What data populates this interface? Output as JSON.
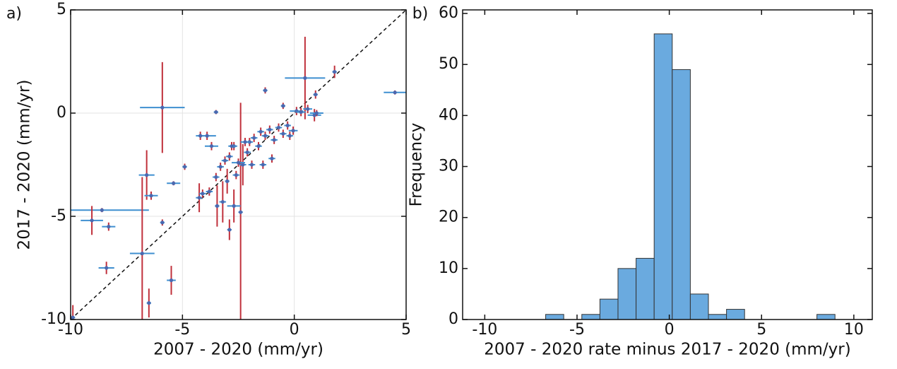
{
  "chart_data": [
    {
      "type": "scatter",
      "panel_label": "a)",
      "xlabel": "2007 - 2020 (mm/yr)",
      "ylabel": "2017 - 2020 (mm/yr)",
      "xlim": [
        -10,
        5
      ],
      "ylim": [
        -10,
        5
      ],
      "xticks": [
        -10,
        -5,
        0,
        5
      ],
      "yticks": [
        -10,
        -5,
        0,
        5
      ],
      "grid": true,
      "identity_line": true,
      "series": [
        {
          "color": "#4a69b0",
          "xerr_color": "#3f8fd0",
          "yerr_color": "#c0303b",
          "x": [
            -5.9,
            0.48,
            -8.6,
            4.5,
            -2.4,
            -6.8,
            -6.5,
            -6.6,
            -9.05,
            -8.3,
            -8.4,
            -9.9,
            -5.5,
            -5.4,
            -4.9,
            -6.4,
            -2.3,
            -0.05,
            0.9,
            1.8,
            -0.5,
            -1.3,
            -3.5,
            -3.9,
            -4.25,
            -3.0,
            -3.2,
            -2.7,
            -3.45,
            -2.9,
            -5.9,
            -4.1,
            -3.8,
            -3.5,
            -3.3,
            -3.1,
            -2.9,
            -2.7,
            -2.5,
            -2.1,
            -2.0,
            -1.8,
            -1.6,
            -1.5,
            -1.3,
            -1.1,
            -0.9,
            -0.7,
            -0.5,
            -0.3,
            -0.2,
            -1.9,
            -2.6,
            -1.0,
            -1.4,
            -2.8,
            0.1,
            0.3,
            0.6,
            1.0,
            0.95,
            -4.2,
            -3.7,
            -2.2
          ],
          "values": [
            0.27,
            1.7,
            -4.7,
            1.0,
            -4.8,
            -6.8,
            -9.2,
            -3.0,
            -5.2,
            -5.5,
            -7.5,
            -9.9,
            -8.1,
            -3.4,
            -2.6,
            -4.0,
            -2.5,
            -0.85,
            -0.1,
            2.0,
            0.35,
            1.1,
            0.05,
            -1.1,
            -4.1,
            -3.3,
            -4.3,
            -4.5,
            -4.5,
            -5.65,
            -5.3,
            -3.9,
            -3.8,
            -3.1,
            -2.6,
            -2.3,
            -2.1,
            -1.6,
            -2.4,
            -1.9,
            -1.4,
            -1.2,
            -1.6,
            -0.9,
            -1.1,
            -0.8,
            -1.3,
            -0.7,
            -1.0,
            -0.6,
            -1.1,
            -2.5,
            -3.0,
            -2.2,
            -2.5,
            -1.6,
            0.1,
            0.05,
            0.2,
            0.0,
            0.9,
            -1.1,
            -1.6,
            -1.4
          ],
          "xerr": [
            1.0,
            0.9,
            2.1,
            0.5,
            0.1,
            0.55,
            0.1,
            0.35,
            0.5,
            0.3,
            0.35,
            0.1,
            0.2,
            0.3,
            0.1,
            0.3,
            0.15,
            0.2,
            0.3,
            0.1,
            0.1,
            0.1,
            0.1,
            0.4,
            0.15,
            0.1,
            0.15,
            0.3,
            0.1,
            0.1,
            0.1,
            0.15,
            0.15,
            0.15,
            0.15,
            0.15,
            0.15,
            0.15,
            0.3,
            0.15,
            0.15,
            0.15,
            0.15,
            0.15,
            0.15,
            0.15,
            0.15,
            0.15,
            0.15,
            0.15,
            0.15,
            0.15,
            0.15,
            0.15,
            0.15,
            0.15,
            0.3,
            0.2,
            0.2,
            0.3,
            0.1,
            0.2,
            0.3,
            0.2
          ],
          "yerr": [
            2.2,
            2.0,
            0.1,
            0.1,
            5.3,
            3.7,
            0.7,
            1.2,
            0.7,
            0.2,
            0.3,
            0.6,
            0.7,
            0.1,
            0.15,
            0.2,
            1.0,
            0.2,
            0.3,
            0.3,
            0.15,
            0.15,
            0.1,
            0.2,
            0.7,
            0.6,
            1.0,
            0.8,
            1.0,
            0.5,
            0.15,
            0.2,
            0.2,
            0.2,
            0.2,
            0.2,
            0.2,
            0.2,
            0.2,
            0.2,
            0.2,
            0.2,
            0.2,
            0.2,
            0.2,
            0.2,
            0.2,
            0.2,
            0.2,
            0.2,
            0.2,
            0.2,
            0.2,
            0.2,
            0.2,
            0.2,
            0.2,
            0.2,
            0.2,
            0.15,
            0.2,
            0.2,
            0.2,
            0.2
          ]
        }
      ]
    },
    {
      "type": "histogram",
      "panel_label": "b)",
      "xlabel": "2007 - 2020 rate minus 2017 - 2020 (mm/yr)",
      "ylabel": "Frequency",
      "xlim": [
        -11.2,
        11
      ],
      "ylim": [
        0,
        60.7
      ],
      "xticks": [
        -10,
        -5,
        0,
        5,
        10
      ],
      "yticks": [
        0,
        10,
        20,
        30,
        40,
        50,
        60
      ],
      "grid": false,
      "color": "#6aaadf",
      "edgecolor": "#333333",
      "bins": [
        -6.7,
        -5.72,
        -4.74,
        -3.76,
        -2.78,
        -1.8,
        -0.82,
        0.16,
        1.14,
        2.12,
        3.1,
        4.08,
        5.06,
        6.04,
        7.02,
        8.0,
        8.98
      ],
      "values": [
        1,
        0,
        1,
        4,
        10,
        12,
        56,
        49,
        5,
        1,
        2,
        0,
        0,
        0,
        0,
        1
      ]
    }
  ]
}
